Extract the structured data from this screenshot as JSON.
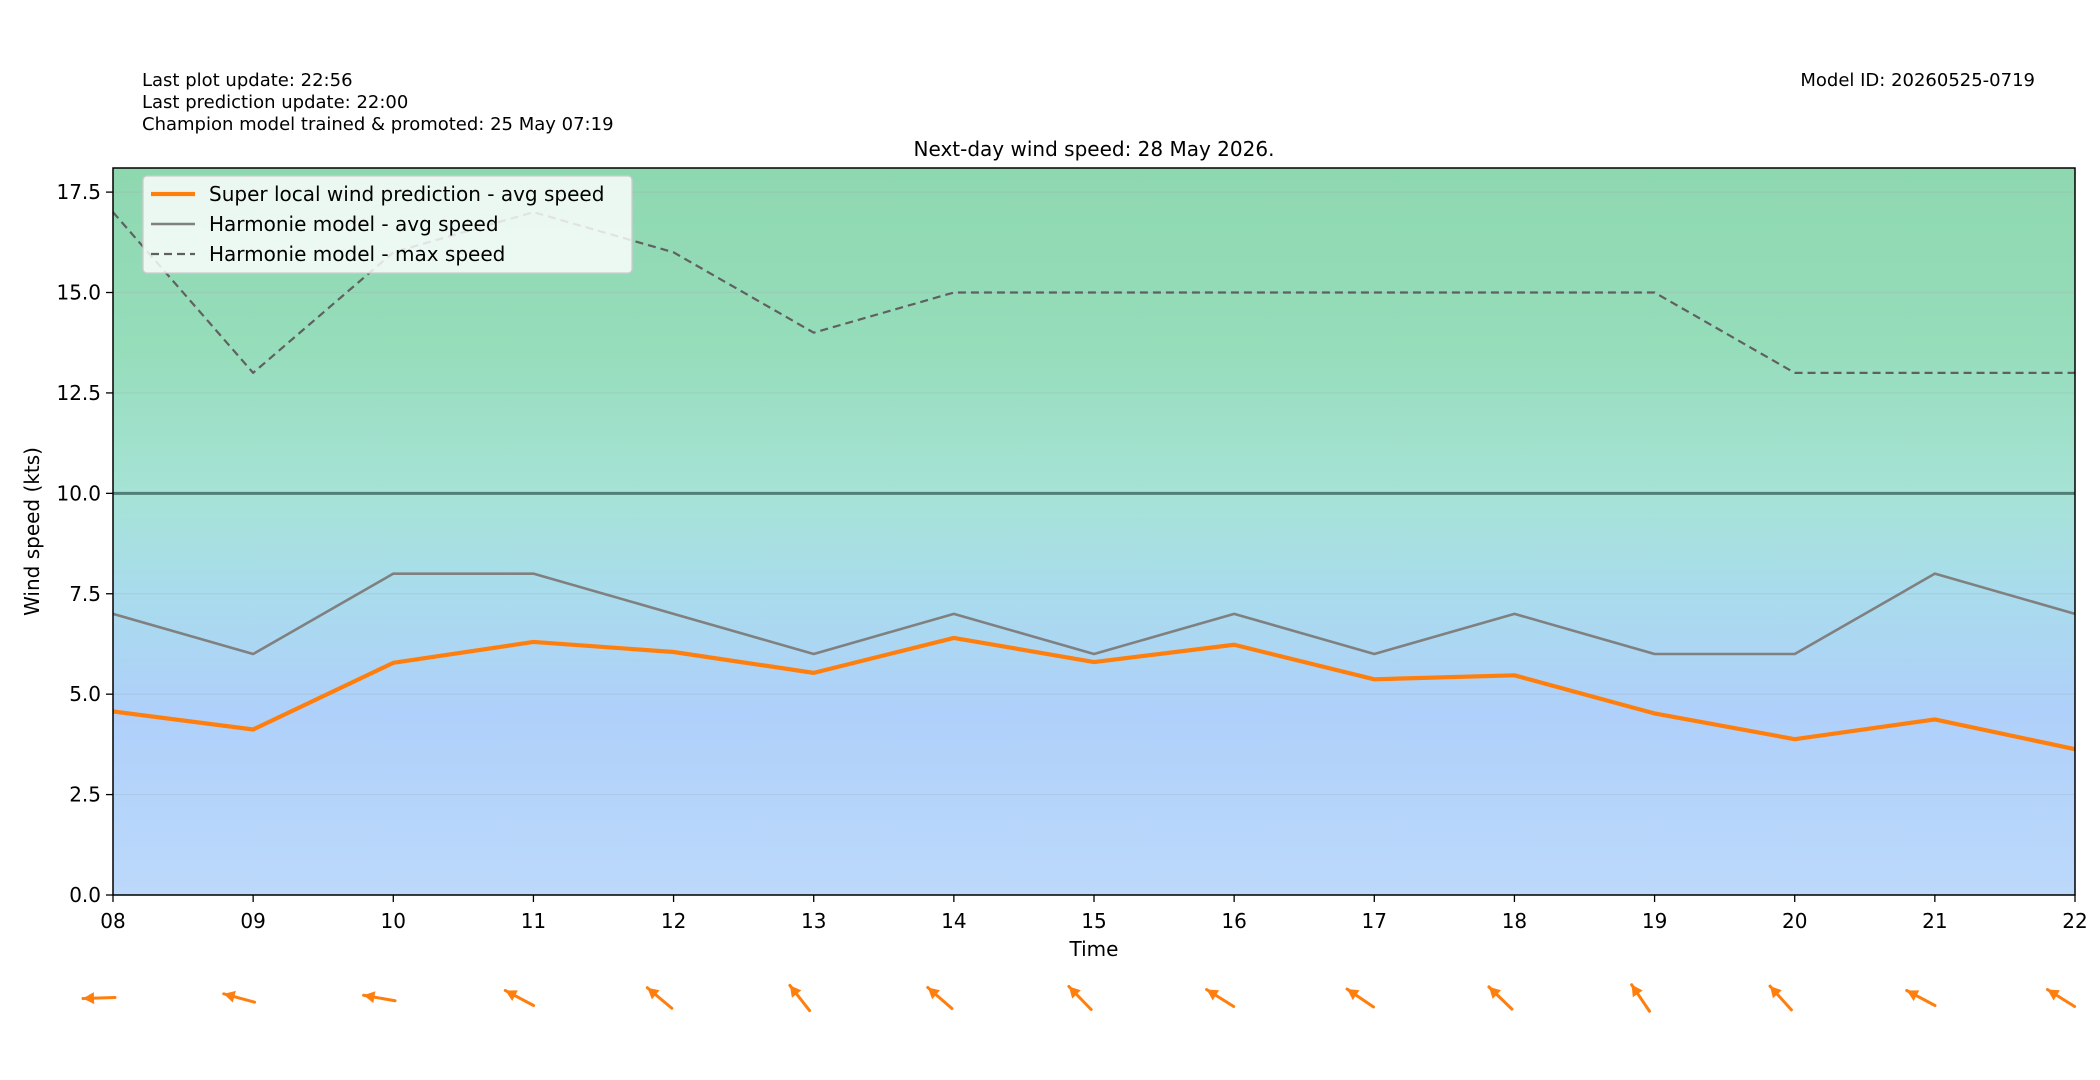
{
  "header": {
    "last_plot_update": "Last plot update: 22:56",
    "last_prediction_update": "Last prediction update: 22:00",
    "champion_model": "Champion model trained & promoted: 25 May 07:19",
    "model_id": "Model ID: 20260525-0719"
  },
  "chart_data": {
    "type": "line",
    "title": "Next-day wind speed: 28 May 2026.",
    "xlabel": "Time",
    "ylabel": "Wind speed (kts)",
    "x": [
      "08",
      "09",
      "10",
      "11",
      "12",
      "13",
      "14",
      "15",
      "16",
      "17",
      "18",
      "19",
      "20",
      "21",
      "22"
    ],
    "xlim": [
      "08",
      "22"
    ],
    "ylim": [
      0,
      18.1
    ],
    "yticks": [
      "0.0",
      "2.5",
      "5.0",
      "7.5",
      "10.0",
      "12.5",
      "15.0",
      "17.5"
    ],
    "grid": true,
    "reference_line": 10.0,
    "legend_position": "top-left",
    "background": "vertical gradient from light blue (0 kts) to green (top)",
    "series": [
      {
        "name": "Super local wind prediction - avg speed",
        "style": "solid-thick",
        "color": "#ff7f0e",
        "values": [
          4.57,
          4.12,
          5.78,
          6.3,
          6.05,
          5.53,
          6.4,
          5.8,
          6.23,
          5.37,
          5.47,
          4.52,
          3.88,
          4.37,
          3.63
        ]
      },
      {
        "name": "Harmonie model - avg speed",
        "style": "solid",
        "color": "#808080",
        "values": [
          7,
          6,
          8,
          8,
          7,
          6,
          7,
          6,
          7,
          6,
          7,
          6,
          6,
          8,
          7
        ]
      },
      {
        "name": "Harmonie model - max speed",
        "style": "dashed",
        "color": "#606060",
        "values": [
          17,
          13,
          16,
          17,
          16,
          14,
          15,
          15,
          15,
          15,
          15,
          15,
          13,
          13,
          13
        ]
      }
    ],
    "wind_direction_arrows": {
      "color": "#ff7f0e",
      "unit": "degrees, direction arrow points toward (0 = up, clockwise)",
      "values": [
        268,
        285,
        280,
        298,
        310,
        322,
        311,
        316,
        302,
        304,
        314,
        326,
        318,
        298,
        302
      ]
    }
  }
}
